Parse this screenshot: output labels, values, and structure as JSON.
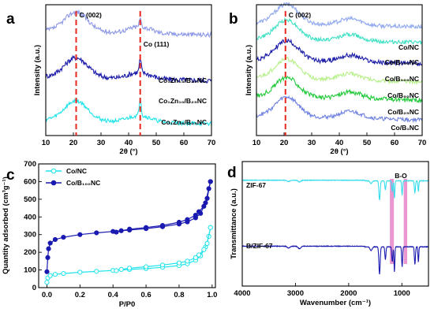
{
  "chart_data": [
    {
      "panel": "a",
      "type": "line",
      "xlabel": "2θ (°)",
      "ylabel": "Intensity (a.u.)",
      "xlim": [
        10,
        70
      ],
      "xticks": [
        "10",
        "20",
        "30",
        "40",
        "50",
        "60",
        "70"
      ],
      "reference_lines": [
        {
          "label": "C (002)",
          "x": 21,
          "color": "#e8281e"
        },
        {
          "label": "Co (111)",
          "x": 44.2,
          "color": "#e8281e"
        }
      ],
      "series": [
        {
          "name": "Co₁Zn₁₃/B₂₅NC",
          "color": "#8c96e6",
          "peak": 21,
          "offset": 0.8,
          "noise": 0.035,
          "co_peak": 0.06
        },
        {
          "name": "Co₁Zn₁₀/B₂₅NC",
          "color": "#1a1aa8",
          "peak": 21,
          "offset": 0.45,
          "noise": 0.04,
          "co_peak": 0.1
        },
        {
          "name": "Co₁Zn₈/B₂₅NC",
          "color": "#1fe3ea",
          "peak": 21,
          "offset": 0.12,
          "noise": 0.03,
          "co_peak": 0.14
        }
      ]
    },
    {
      "panel": "b",
      "type": "line",
      "xlabel": "2θ (°)",
      "ylabel": "Intensity (a.u.)",
      "xlim": [
        10,
        70
      ],
      "xticks": [
        "10",
        "20",
        "30",
        "40",
        "50",
        "60",
        "70"
      ],
      "reference_lines": [
        {
          "label": "C (002)",
          "x": 20.5,
          "color": "#e8281e"
        }
      ],
      "series": [
        {
          "name": "Co/NC",
          "color": "#8fa8ee",
          "peak": 21,
          "offset": 0.86,
          "noise": 0.03
        },
        {
          "name": "Co/B₁₅₀NC",
          "color": "#3ee0c4",
          "peak": 21,
          "offset": 0.74,
          "noise": 0.03
        },
        {
          "name": "Co/B₁₀₀NC",
          "color": "#1a1aa8",
          "peak": 21,
          "offset": 0.58,
          "noise": 0.035
        },
        {
          "name": "Co/B₅₀NC",
          "color": "#b7f08a",
          "peak": 21,
          "offset": 0.44,
          "noise": 0.03
        },
        {
          "name": "Co/B₂₅NC",
          "color": "#22c93a",
          "peak": 21,
          "offset": 0.3,
          "noise": 0.035
        },
        {
          "name": "Co/B₁NC",
          "color": "#6f82e0",
          "peak": 21,
          "offset": 0.15,
          "noise": 0.03
        }
      ]
    },
    {
      "panel": "c",
      "type": "line",
      "xlabel": "P/P0",
      "ylabel": "Quantity adsorbed (cm³g⁻¹)",
      "xlim": [
        -0.05,
        1.02
      ],
      "ylim": [
        0,
        700
      ],
      "xticks": [
        0.0,
        0.2,
        0.4,
        0.6,
        0.8,
        1.0
      ],
      "yticks": [
        0,
        100,
        200,
        300,
        400,
        500,
        600,
        700
      ],
      "legend_position": "top-left",
      "series": [
        {
          "name": "Co/NC",
          "color": "#1fe3ea",
          "marker": "circle",
          "adsorption": [
            [
              0.0,
              30
            ],
            [
              0.005,
              55
            ],
            [
              0.02,
              68
            ],
            [
              0.05,
              75
            ],
            [
              0.1,
              80
            ],
            [
              0.2,
              87
            ],
            [
              0.3,
              92
            ],
            [
              0.4,
              97
            ],
            [
              0.5,
              103
            ],
            [
              0.6,
              108
            ],
            [
              0.7,
              115
            ],
            [
              0.8,
              125
            ],
            [
              0.85,
              135
            ],
            [
              0.9,
              155
            ],
            [
              0.93,
              180
            ],
            [
              0.96,
              230
            ],
            [
              0.98,
              290
            ],
            [
              0.99,
              340
            ]
          ],
          "desorption": [
            [
              0.99,
              340
            ],
            [
              0.97,
              250
            ],
            [
              0.95,
              215
            ],
            [
              0.92,
              185
            ],
            [
              0.9,
              170
            ],
            [
              0.85,
              150
            ],
            [
              0.8,
              140
            ],
            [
              0.7,
              128
            ],
            [
              0.6,
              118
            ],
            [
              0.5,
              110
            ],
            [
              0.45,
              103
            ],
            [
              0.42,
              96
            ]
          ]
        },
        {
          "name": "Co/B₁₀₀NC",
          "color": "#1a1ab0",
          "marker": "half-filled circle",
          "adsorption": [
            [
              0.0,
              90
            ],
            [
              0.005,
              170
            ],
            [
              0.01,
              220
            ],
            [
              0.02,
              252
            ],
            [
              0.05,
              272
            ],
            [
              0.1,
              285
            ],
            [
              0.2,
              300
            ],
            [
              0.3,
              310
            ],
            [
              0.4,
              318
            ],
            [
              0.5,
              326
            ],
            [
              0.6,
              334
            ],
            [
              0.7,
              345
            ],
            [
              0.8,
              360
            ],
            [
              0.85,
              372
            ],
            [
              0.9,
              395
            ],
            [
              0.93,
              420
            ],
            [
              0.96,
              480
            ],
            [
              0.98,
              560
            ],
            [
              0.99,
              600
            ]
          ],
          "desorption": [
            [
              0.99,
              600
            ],
            [
              0.97,
              505
            ],
            [
              0.95,
              460
            ],
            [
              0.92,
              430
            ],
            [
              0.9,
              410
            ],
            [
              0.85,
              385
            ],
            [
              0.8,
              370
            ],
            [
              0.7,
              352
            ],
            [
              0.6,
              340
            ],
            [
              0.5,
              331
            ],
            [
              0.45,
              322
            ],
            [
              0.42,
              314
            ]
          ]
        }
      ]
    },
    {
      "panel": "d",
      "type": "line",
      "xlabel": "Wavenumber (cm⁻¹)",
      "ylabel": "Transmittance (a.u.)",
      "xlim": [
        4000,
        500
      ],
      "xticks": [
        4000,
        3000,
        2000,
        1000
      ],
      "highlight_label": "B-O",
      "highlight_bands": [
        [
          1225,
          1150
        ],
        [
          965,
          900
        ]
      ],
      "highlight_color": "#e684c8",
      "series": [
        {
          "name": "ZIF-67",
          "color": "#35dcec",
          "baseline": 0.85
        },
        {
          "name": "B/ZIF-67",
          "color": "#1a1ab0",
          "baseline": 0.32
        }
      ]
    }
  ]
}
